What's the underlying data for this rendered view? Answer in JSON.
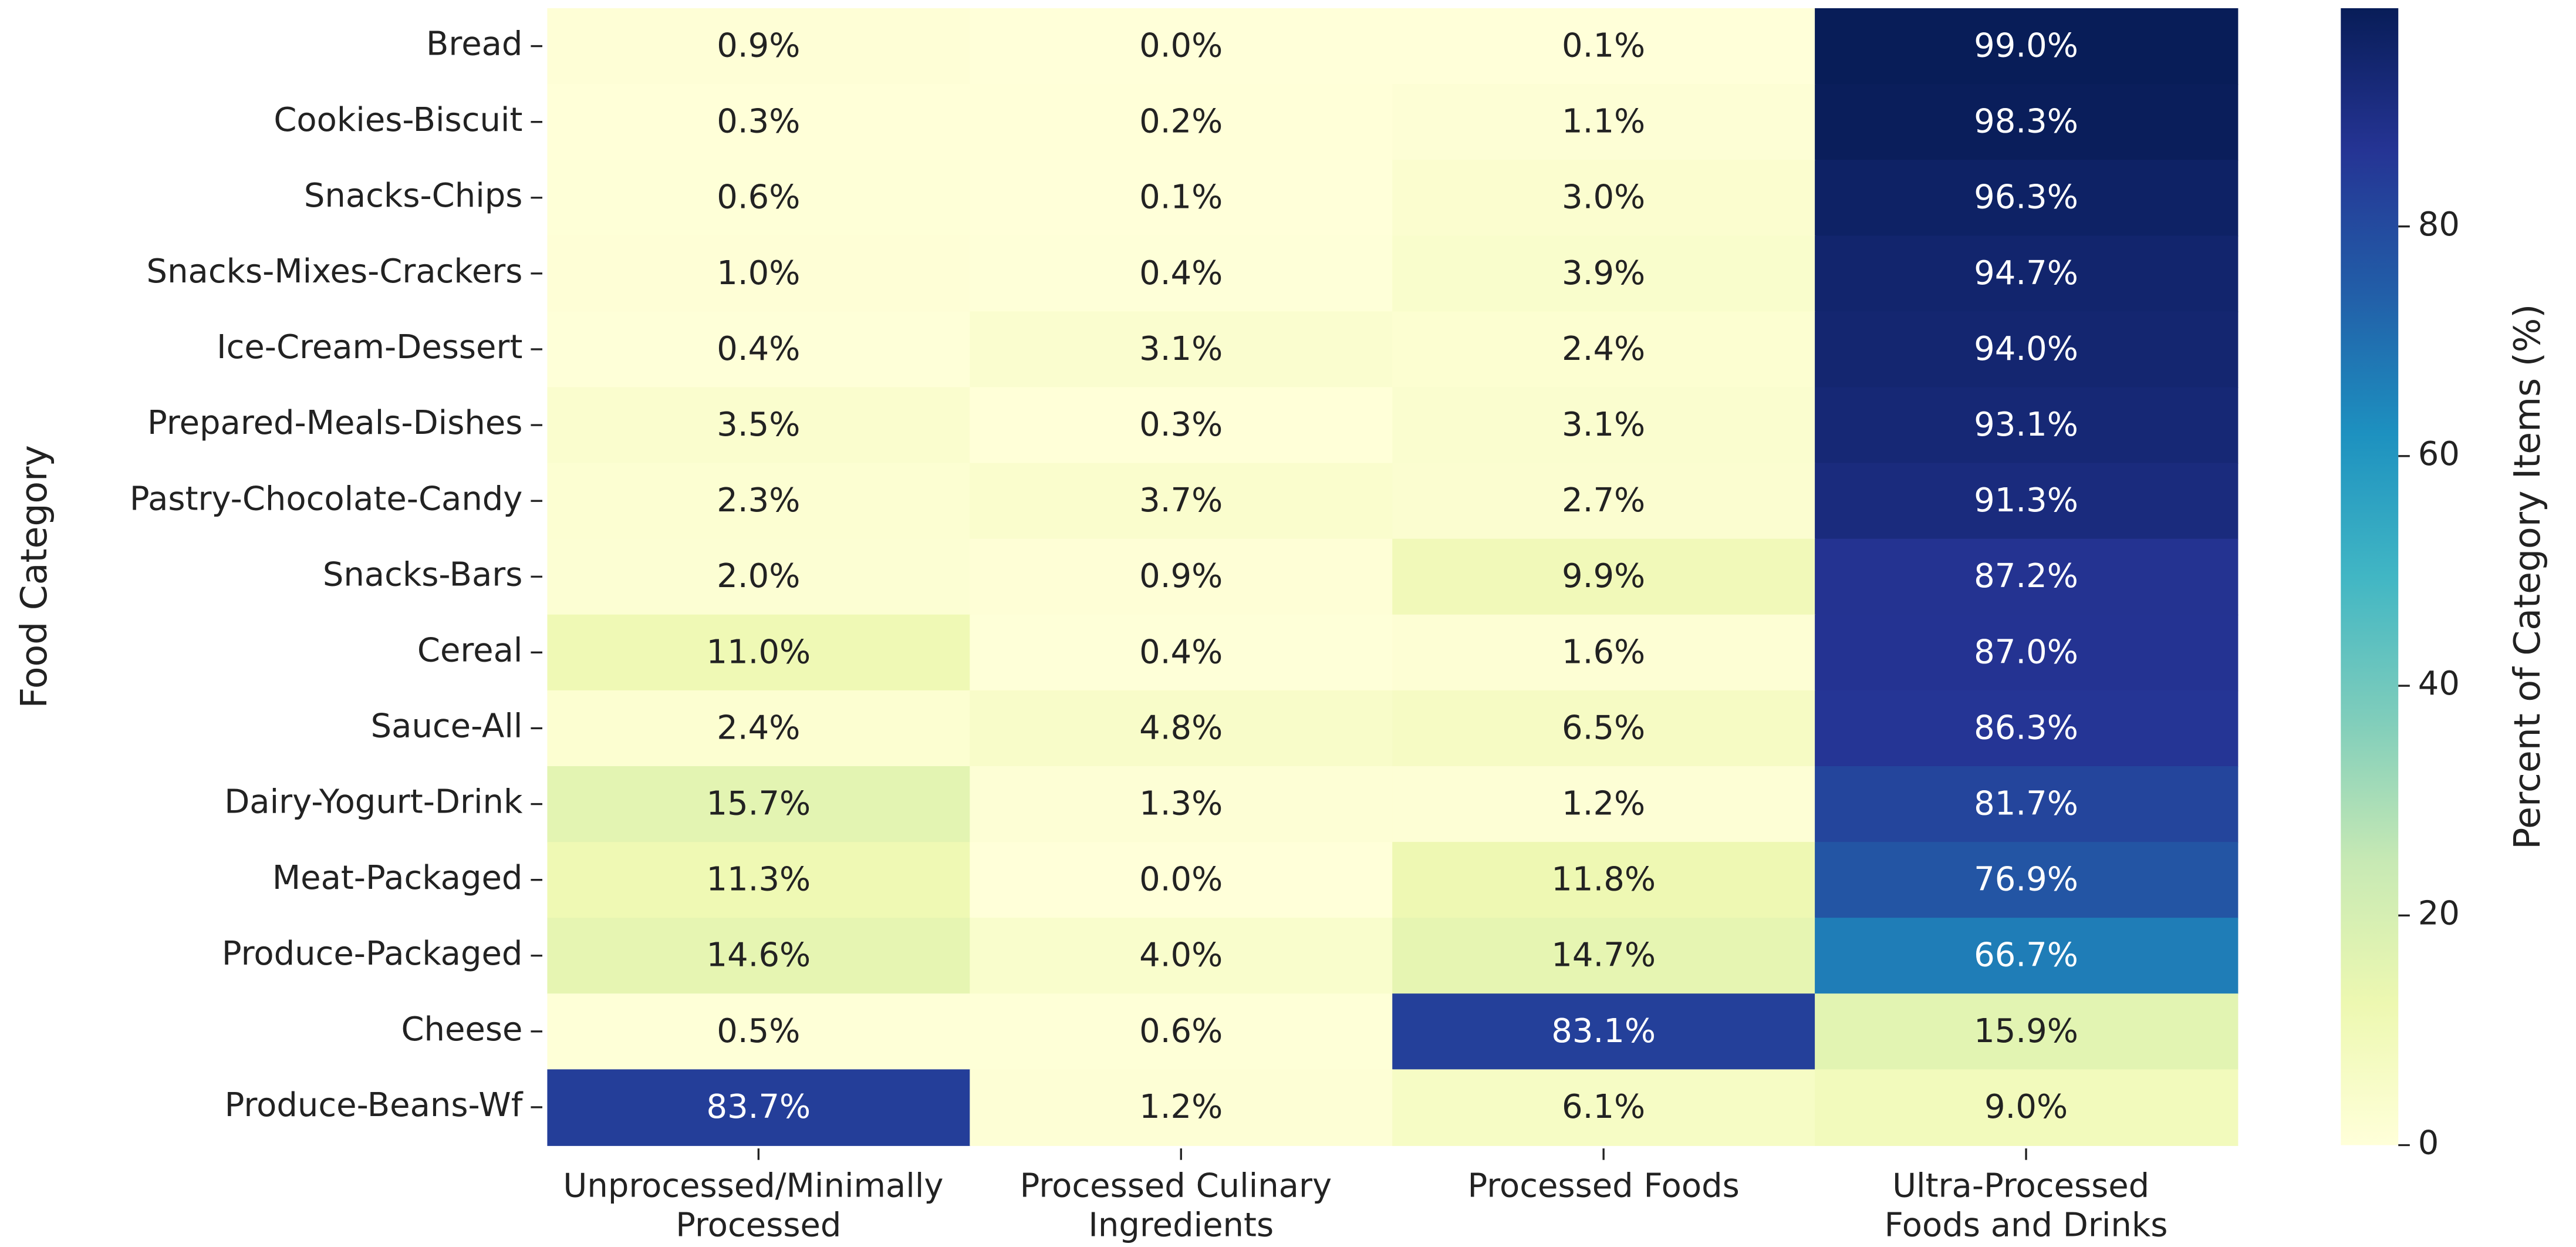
{
  "chart_data": {
    "type": "heatmap",
    "ylabel": "Food Category",
    "colorbar_label": "Percent of Category Items (%)",
    "colormap": [
      "#ffffd9",
      "#edf8b1",
      "#c7e9b4",
      "#7fcdbb",
      "#41b6c4",
      "#1d91c0",
      "#225ea8",
      "#253494",
      "#081d58"
    ],
    "clim": [
      0,
      99
    ],
    "cticks": [
      0,
      20,
      40,
      60,
      80
    ],
    "columns": [
      "Unprocessed/Minimally Processed",
      "Processed Culinary Ingredients",
      "Processed Foods",
      "Ultra-Processed Foods and Drinks"
    ],
    "categories": [
      "Bread",
      "Cookies-Biscuit",
      "Snacks-Chips",
      "Snacks-Mixes-Crackers",
      "Ice-Cream-Dessert",
      "Prepared-Meals-Dishes",
      "Pastry-Chocolate-Candy",
      "Snacks-Bars",
      "Cereal",
      "Sauce-All",
      "Dairy-Yogurt-Drink",
      "Meat-Packaged",
      "Produce-Packaged",
      "Cheese",
      "Produce-Beans-Wf"
    ],
    "values": [
      [
        0.9,
        0.0,
        0.1,
        99.0
      ],
      [
        0.3,
        0.2,
        1.1,
        98.3
      ],
      [
        0.6,
        0.1,
        3.0,
        96.3
      ],
      [
        1.0,
        0.4,
        3.9,
        94.7
      ],
      [
        0.4,
        3.1,
        2.4,
        94.0
      ],
      [
        3.5,
        0.3,
        3.1,
        93.1
      ],
      [
        2.3,
        3.7,
        2.7,
        91.3
      ],
      [
        2.0,
        0.9,
        9.9,
        87.2
      ],
      [
        11.0,
        0.4,
        1.6,
        87.0
      ],
      [
        2.4,
        4.8,
        6.5,
        86.3
      ],
      [
        15.7,
        1.3,
        1.2,
        81.7
      ],
      [
        11.3,
        0.0,
        11.8,
        76.9
      ],
      [
        14.6,
        4.0,
        14.7,
        66.7
      ],
      [
        0.5,
        0.6,
        83.1,
        15.9
      ],
      [
        83.7,
        1.2,
        6.1,
        9.0
      ]
    ],
    "value_labels": [
      [
        "0.9%",
        "0.0%",
        "0.1%",
        "99.0%"
      ],
      [
        "0.3%",
        "0.2%",
        "1.1%",
        "98.3%"
      ],
      [
        "0.6%",
        "0.1%",
        "3.0%",
        "96.3%"
      ],
      [
        "1.0%",
        "0.4%",
        "3.9%",
        "94.7%"
      ],
      [
        "0.4%",
        "3.1%",
        "2.4%",
        "94.0%"
      ],
      [
        "3.5%",
        "0.3%",
        "3.1%",
        "93.1%"
      ],
      [
        "2.3%",
        "3.7%",
        "2.7%",
        "91.3%"
      ],
      [
        "2.0%",
        "0.9%",
        "9.9%",
        "87.2%"
      ],
      [
        "11.0%",
        "0.4%",
        "1.6%",
        "87.0%"
      ],
      [
        "2.4%",
        "4.8%",
        "6.5%",
        "86.3%"
      ],
      [
        "15.7%",
        "1.3%",
        "1.2%",
        "81.7%"
      ],
      [
        "11.3%",
        "0.0%",
        "11.8%",
        "76.9%"
      ],
      [
        "14.6%",
        "4.0%",
        "14.7%",
        "66.7%"
      ],
      [
        "0.5%",
        "0.6%",
        "83.1%",
        "15.9%"
      ],
      [
        "83.7%",
        "1.2%",
        "6.1%",
        "9.0%"
      ]
    ]
  }
}
